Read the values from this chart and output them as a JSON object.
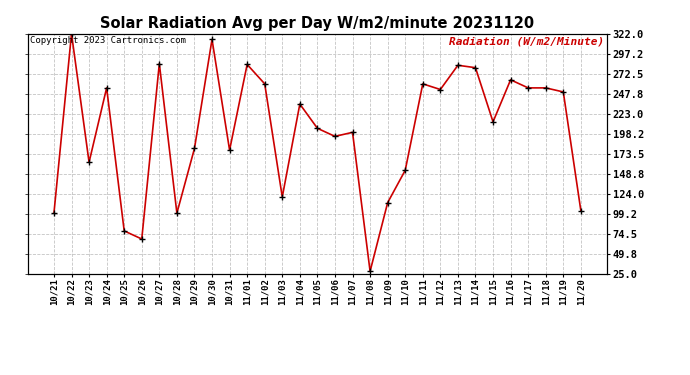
{
  "title": "Solar Radiation Avg per Day W/m2/minute 20231120",
  "copyright": "Copyright 2023 Cartronics.com",
  "legend_label": "Radiation (W/m2/Minute)",
  "dates": [
    "10/21",
    "10/22",
    "10/23",
    "10/24",
    "10/25",
    "10/26",
    "10/27",
    "10/28",
    "10/29",
    "10/30",
    "10/31",
    "11/01",
    "11/02",
    "11/03",
    "11/04",
    "11/05",
    "11/06",
    "11/07",
    "11/08",
    "11/09",
    "11/10",
    "11/11",
    "11/12",
    "11/13",
    "11/14",
    "11/15",
    "11/16",
    "11/17",
    "11/18",
    "11/19",
    "11/20"
  ],
  "values": [
    100,
    322,
    163,
    255,
    78,
    68,
    285,
    100,
    180,
    315,
    178,
    284,
    260,
    120,
    235,
    205,
    195,
    200,
    28,
    113,
    153,
    260,
    253,
    283,
    280,
    213,
    265,
    255,
    255,
    250,
    103
  ],
  "line_color": "#cc0000",
  "marker_color": "#000000",
  "bg_color": "#ffffff",
  "grid_color": "#aaaaaa",
  "ylim_min": 25.0,
  "ylim_max": 322.0,
  "yticks": [
    25.0,
    49.8,
    74.5,
    99.2,
    124.0,
    148.8,
    173.5,
    198.2,
    223.0,
    247.8,
    272.5,
    297.2,
    322.0
  ]
}
